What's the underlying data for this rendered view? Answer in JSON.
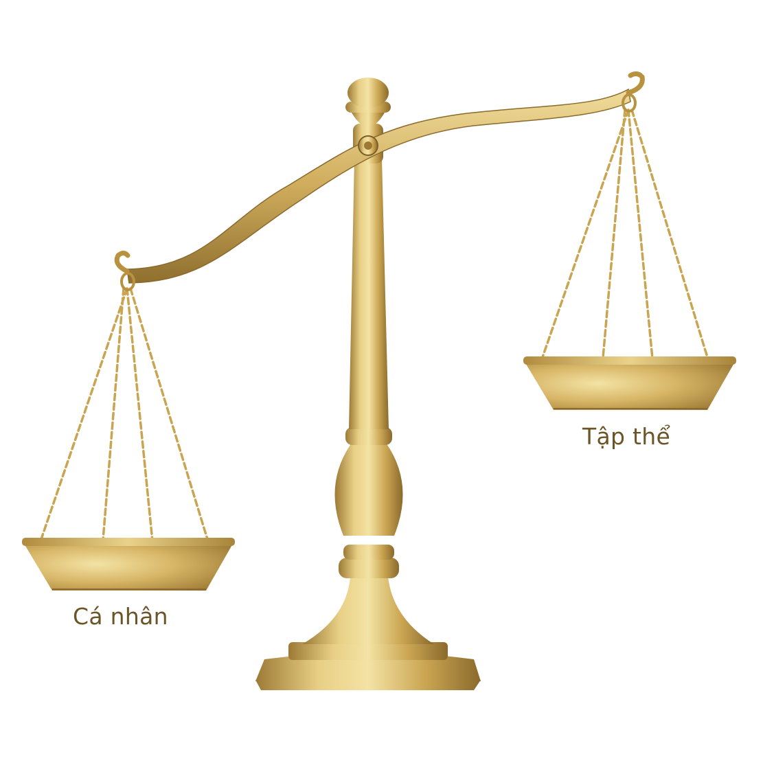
{
  "scale": {
    "left_pan_label": "Cá nhân",
    "right_pan_label": "Tập thể",
    "heavier_side": "left"
  },
  "colors": {
    "gold_light": "#f3e3a4",
    "gold_mid": "#d7b566",
    "gold_dark": "#9c7a35",
    "gold_shadow": "#7d5f26",
    "label_text": "#6b5428",
    "background": "#ffffff"
  }
}
